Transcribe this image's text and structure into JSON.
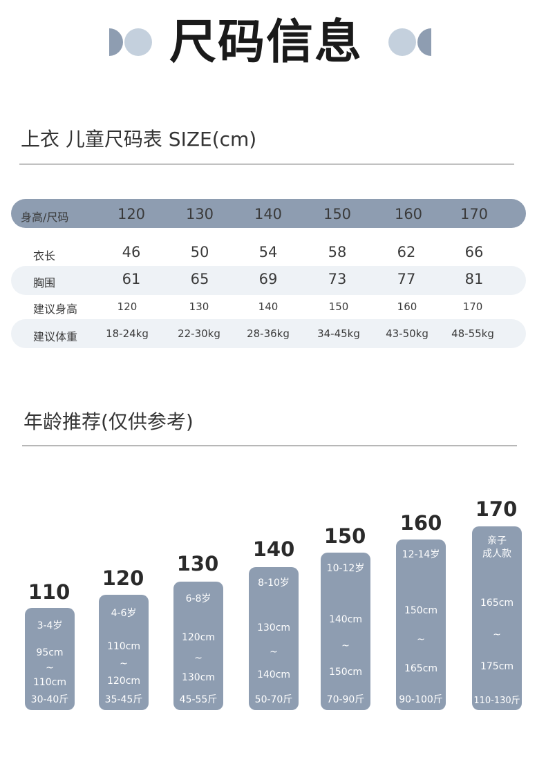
{
  "title": "尺码信息",
  "size_section": {
    "heading": "上衣 儿童尺码表 SIZE(cm)",
    "header_label": "身高/尺码",
    "sizes": [
      "120",
      "130",
      "140",
      "150",
      "160",
      "170"
    ],
    "rows": [
      {
        "label": "衣长",
        "values": [
          "46",
          "50",
          "54",
          "58",
          "62",
          "66"
        ]
      },
      {
        "label": "胸围",
        "values": [
          "61",
          "65",
          "69",
          "73",
          "77",
          "81"
        ]
      },
      {
        "label": "建议身高",
        "values": [
          "120",
          "130",
          "140",
          "150",
          "160",
          "170"
        ]
      },
      {
        "label": "建议体重",
        "values": [
          "18-24kg",
          "22-30kg",
          "28-36kg",
          "34-45kg",
          "43-50kg",
          "48-55kg"
        ]
      }
    ]
  },
  "age_section": {
    "heading": "年龄推荐(仅供参考)",
    "bars": [
      {
        "size": "110",
        "age": "3-4岁",
        "age2": "",
        "h_low": "95cm",
        "tilde": "~",
        "h_high": "110cm",
        "weight": "30-40斤"
      },
      {
        "size": "120",
        "age": "4-6岁",
        "age2": "",
        "h_low": "110cm",
        "tilde": "~",
        "h_high": "120cm",
        "weight": "35-45斤"
      },
      {
        "size": "130",
        "age": "6-8岁",
        "age2": "",
        "h_low": "120cm",
        "tilde": "~",
        "h_high": "130cm",
        "weight": "45-55斤"
      },
      {
        "size": "140",
        "age": "8-10岁",
        "age2": "",
        "h_low": "130cm",
        "tilde": "~",
        "h_high": "140cm",
        "weight": "50-70斤"
      },
      {
        "size": "150",
        "age": "10-12岁",
        "age2": "",
        "h_low": "140cm",
        "tilde": "~",
        "h_high": "150cm",
        "weight": "70-90斤"
      },
      {
        "size": "160",
        "age": "12-14岁",
        "age2": "",
        "h_low": "150cm",
        "tilde": "~",
        "h_high": "165cm",
        "weight": "90-100斤"
      },
      {
        "size": "170",
        "age": "亲子",
        "age2": "成人款",
        "h_low": "165cm",
        "tilde": "~",
        "h_high": "175cm",
        "weight": "110-130斤"
      }
    ]
  },
  "colors": {
    "accent": "#8e9db1",
    "accent_light": "#c4d0dd",
    "stripe": "#eef2f6"
  }
}
